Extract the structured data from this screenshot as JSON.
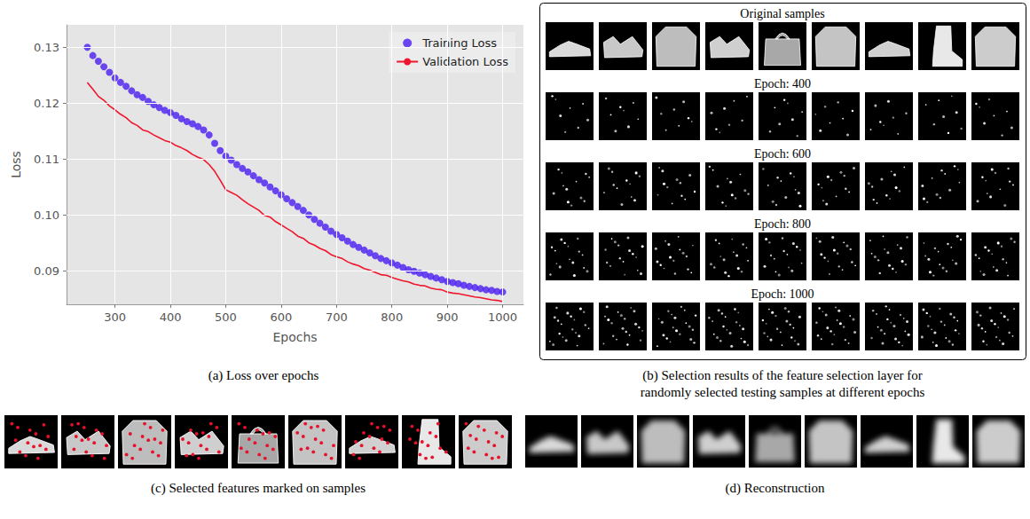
{
  "chart_data": {
    "type": "line",
    "xlabel": "Epochs",
    "ylabel": "Loss",
    "x": [
      250,
      260,
      270,
      280,
      290,
      300,
      310,
      320,
      330,
      340,
      350,
      360,
      370,
      380,
      390,
      400,
      410,
      420,
      430,
      440,
      450,
      460,
      470,
      480,
      490,
      500,
      510,
      520,
      530,
      540,
      550,
      560,
      570,
      580,
      590,
      600,
      610,
      620,
      630,
      640,
      650,
      660,
      670,
      680,
      690,
      700,
      710,
      720,
      730,
      740,
      750,
      760,
      770,
      780,
      790,
      800,
      810,
      820,
      830,
      840,
      850,
      860,
      870,
      880,
      890,
      900,
      910,
      920,
      930,
      940,
      950,
      960,
      970,
      980,
      990,
      1000
    ],
    "series": [
      {
        "name": "Training Loss",
        "type": "scatter",
        "marker": "circle",
        "color": "#4a1df2",
        "values": [
          0.13,
          0.1285,
          0.1275,
          0.1265,
          0.1255,
          0.1245,
          0.1237,
          0.123,
          0.1222,
          0.1215,
          0.121,
          0.1203,
          0.1197,
          0.1192,
          0.1187,
          0.1183,
          0.1178,
          0.1172,
          0.1167,
          0.1163,
          0.1158,
          0.1152,
          0.1143,
          0.1128,
          0.1115,
          0.1105,
          0.1098,
          0.109,
          0.1083,
          0.1077,
          0.107,
          0.1063,
          0.1057,
          0.105,
          0.1043,
          0.1036,
          0.1029,
          0.1022,
          0.1015,
          0.1008,
          0.1,
          0.0992,
          0.0985,
          0.0978,
          0.0971,
          0.0965,
          0.0959,
          0.0953,
          0.0947,
          0.0942,
          0.0937,
          0.0932,
          0.0927,
          0.0922,
          0.0918,
          0.0914,
          0.091,
          0.0906,
          0.0902,
          0.0899,
          0.0896,
          0.0893,
          0.089,
          0.0887,
          0.0884,
          0.0881,
          0.0879,
          0.0877,
          0.0874,
          0.0872,
          0.087,
          0.0868,
          0.0866,
          0.0865,
          0.0863,
          0.0862
        ]
      },
      {
        "name": "Validation Loss",
        "type": "line",
        "line_style": "solid",
        "color": "#f0142d",
        "values": [
          0.1237,
          0.1225,
          0.1212,
          0.1205,
          0.1195,
          0.1188,
          0.118,
          0.1174,
          0.1165,
          0.116,
          0.1152,
          0.1149,
          0.1143,
          0.1138,
          0.1133,
          0.113,
          0.1124,
          0.112,
          0.1115,
          0.1108,
          0.1103,
          0.1099,
          0.109,
          0.1078,
          0.1062,
          0.1045,
          0.104,
          0.1035,
          0.1027,
          0.102,
          0.1014,
          0.1008,
          0.0999,
          0.0996,
          0.0988,
          0.0982,
          0.0976,
          0.097,
          0.0962,
          0.0958,
          0.095,
          0.0946,
          0.094,
          0.0936,
          0.0929,
          0.0925,
          0.0922,
          0.0916,
          0.0912,
          0.0909,
          0.0904,
          0.0901,
          0.0897,
          0.0893,
          0.0892,
          0.0888,
          0.0885,
          0.0882,
          0.088,
          0.0876,
          0.0874,
          0.0873,
          0.0869,
          0.0867,
          0.0866,
          0.0862,
          0.086,
          0.0859,
          0.0857,
          0.0855,
          0.0853,
          0.0852,
          0.085,
          0.0848,
          0.0847,
          0.0845
        ]
      }
    ],
    "xlim": [
      212.5,
      1037.5
    ],
    "xticks": [
      300,
      400,
      500,
      600,
      700,
      800,
      900,
      1000
    ],
    "ylim": [
      0.084,
      0.134
    ],
    "yticks": [
      0.09,
      {
        "value": 0.1,
        "label": "0.10"
      },
      0.11,
      0.12,
      0.13
    ],
    "grid": true,
    "legend": "upper right"
  },
  "panels": {
    "a": {
      "caption": "(a) Loss over epochs"
    },
    "b": {
      "caption": "(b) Selection results of the feature selection layer for randomly selected testing samples at different epochs",
      "rows": [
        "Original samples",
        "Epoch: 400",
        "Epoch: 600",
        "Epoch: 800",
        "Epoch: 1000"
      ]
    },
    "c": {
      "caption": "(c) Selected features marked on samples"
    },
    "d": {
      "caption": "(d) Reconstruction"
    }
  }
}
